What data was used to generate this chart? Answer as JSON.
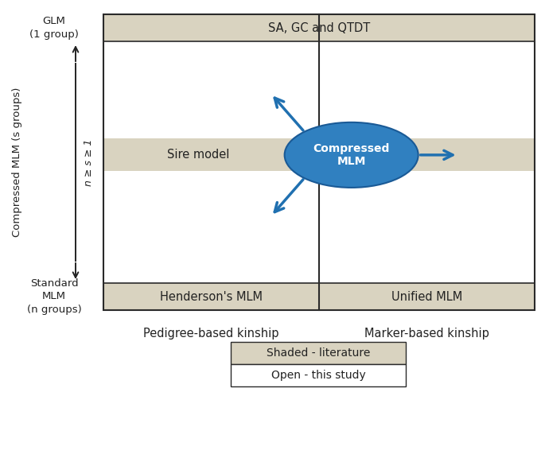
{
  "bg_color": "#ffffff",
  "shaded_color": "#d9d3c0",
  "box_edge_color": "#2a2a2a",
  "blue_color": "#3080c0",
  "arrow_color": "#2070b0",
  "text_color": "#222222",
  "top_bar_label": "SA, GC and QTDT",
  "bottom_left_label": "Henderson's MLM",
  "bottom_right_label": "Unified MLM",
  "sire_label": "Sire model",
  "compressed_label": "Compressed\nMLM",
  "xlabel_left": "Pedigree-based kinship",
  "xlabel_right": "Marker-based kinship",
  "ylabel_top": "GLM\n(1 group)",
  "ylabel_mid": "Compressed MLM (s groups)",
  "ylabel_n_label": "n ≥ s ≥ 1",
  "ylabel_bot": "Standard\nMLM\n(n groups)",
  "legend_shaded": "Shaded - literature",
  "legend_open": "Open - this study"
}
